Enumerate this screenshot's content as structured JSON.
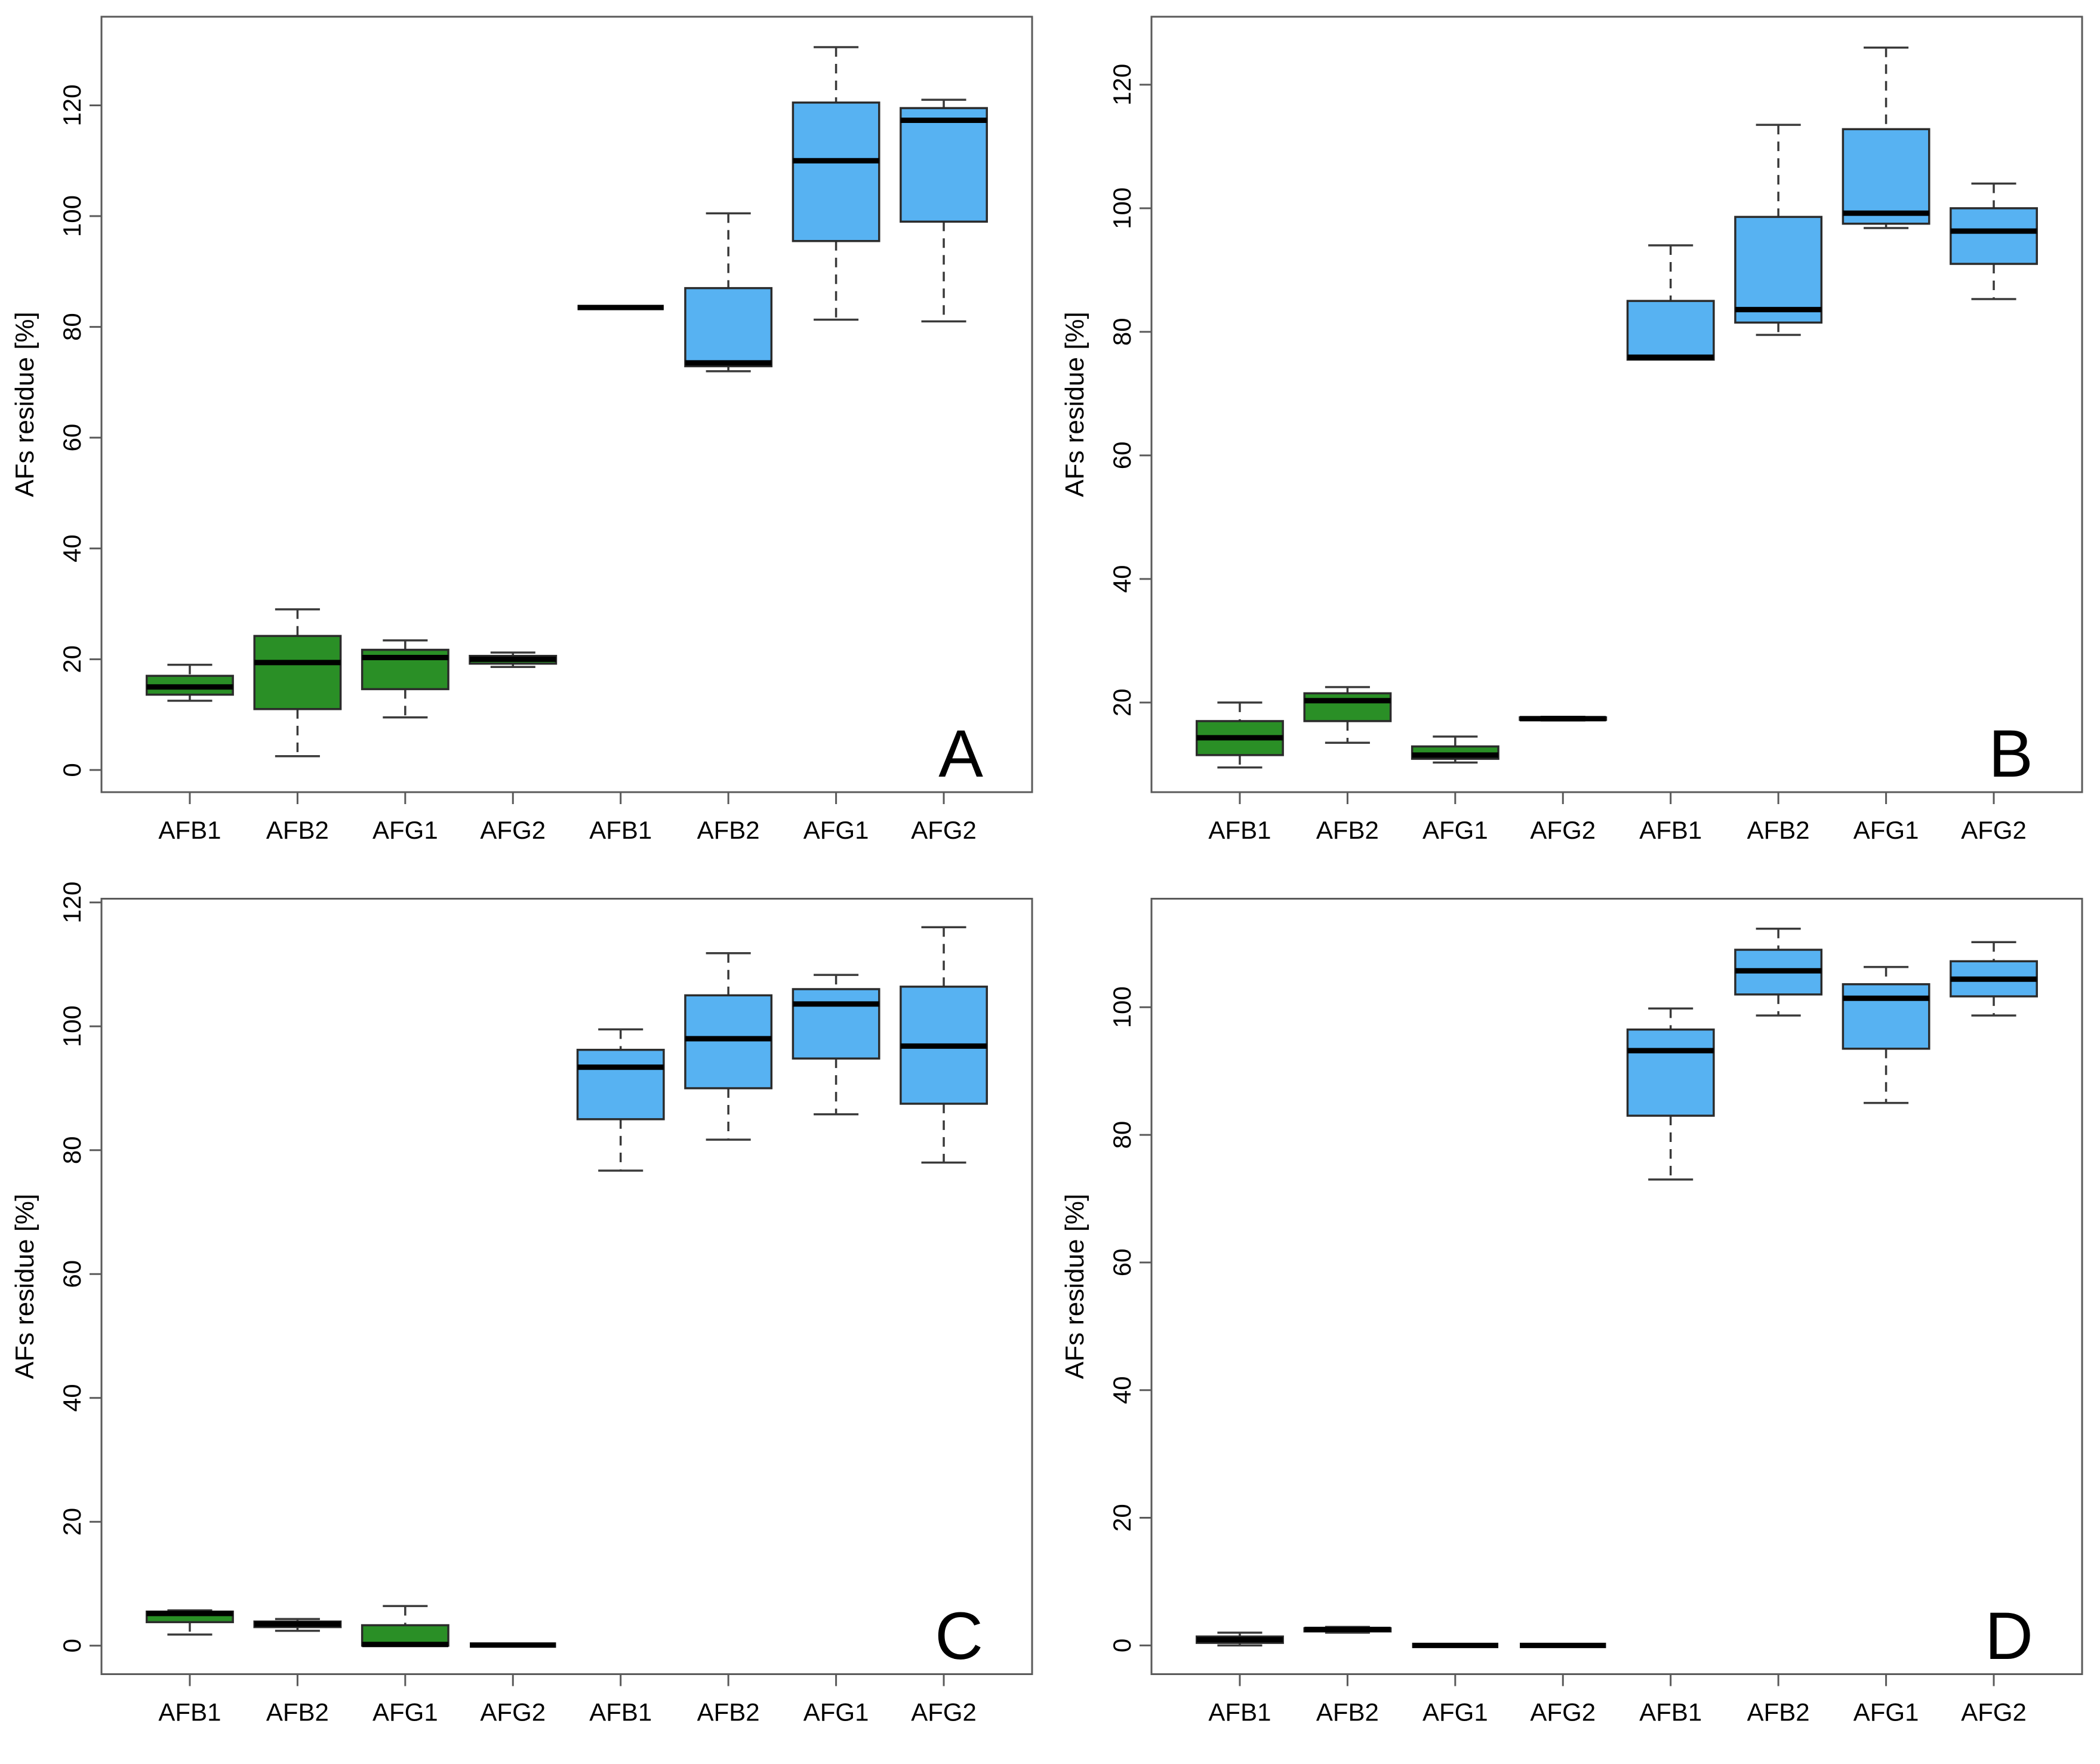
{
  "figure": {
    "background": "#ffffff",
    "kind": "four-panel boxplot figure"
  },
  "colors": {
    "green_fill": "#2a8f26",
    "blue_fill": "#57b2f2",
    "box_border": "#2b2b2b",
    "median": "#000000",
    "whisker": "#3a3a3a",
    "axis": "#5a5a5a",
    "text": "#000000"
  },
  "chart_data": [
    {
      "type": "boxplot",
      "panel_label": "A",
      "ylabel": "AFs residue [%]",
      "yticks": [
        0,
        20,
        40,
        60,
        80,
        100,
        120
      ],
      "ylim": [
        -4,
        136
      ],
      "grid": false,
      "legend": "none",
      "categories": [
        "AFB1",
        "AFB2",
        "AFG1",
        "AFG2",
        "AFB1",
        "AFB2",
        "AFG1",
        "AFG2"
      ],
      "series": [
        {
          "label": "AFB1",
          "group": "green",
          "whislo": 12.5,
          "q1": 13.6,
          "med": 15.0,
          "q3": 17.0,
          "whishi": 19.0
        },
        {
          "label": "AFB2",
          "group": "green",
          "whislo": 2.5,
          "q1": 11.0,
          "med": 19.4,
          "q3": 24.2,
          "whishi": 29.0
        },
        {
          "label": "AFG1",
          "group": "green",
          "whislo": 9.5,
          "q1": 14.6,
          "med": 20.3,
          "q3": 21.7,
          "whishi": 23.4
        },
        {
          "label": "AFG2",
          "group": "green",
          "whislo": 18.6,
          "q1": 19.2,
          "med": 20.0,
          "q3": 20.6,
          "whishi": 21.2
        },
        {
          "label": "AFB1",
          "group": "blue",
          "whislo": 83.5,
          "q1": 83.5,
          "med": 83.5,
          "q3": 83.5,
          "whishi": 83.5
        },
        {
          "label": "AFB2",
          "group": "blue",
          "whislo": 72.0,
          "q1": 72.9,
          "med": 73.5,
          "q3": 87.0,
          "whishi": 100.5
        },
        {
          "label": "AFG1",
          "group": "blue",
          "whislo": 81.3,
          "q1": 95.5,
          "med": 110.0,
          "q3": 120.5,
          "whishi": 130.5
        },
        {
          "label": "AFG2",
          "group": "blue",
          "whislo": 81.0,
          "q1": 99.0,
          "med": 117.3,
          "q3": 119.5,
          "whishi": 121.0
        }
      ]
    },
    {
      "type": "boxplot",
      "panel_label": "B",
      "ylabel": "AFs residue [%]",
      "yticks": [
        20,
        40,
        60,
        80,
        100,
        120
      ],
      "ylim": [
        5.5,
        131
      ],
      "grid": false,
      "legend": "none",
      "categories": [
        "AFB1",
        "AFB2",
        "AFG1",
        "AFG2",
        "AFB1",
        "AFB2",
        "AFG1",
        "AFG2"
      ],
      "series": [
        {
          "label": "AFB1",
          "group": "green",
          "whislo": 9.5,
          "q1": 11.5,
          "med": 14.3,
          "q3": 17.0,
          "whishi": 20.0
        },
        {
          "label": "AFB2",
          "group": "green",
          "whislo": 13.5,
          "q1": 17.0,
          "med": 20.3,
          "q3": 21.5,
          "whishi": 22.5
        },
        {
          "label": "AFG1",
          "group": "green",
          "whislo": 10.3,
          "q1": 10.9,
          "med": 11.5,
          "q3": 12.9,
          "whishi": 14.5
        },
        {
          "label": "AFG2",
          "group": "green",
          "whislo": 17.1,
          "q1": 17.2,
          "med": 17.4,
          "q3": 17.6,
          "whishi": 17.7
        },
        {
          "label": "AFB1",
          "group": "blue",
          "whislo": 75.5,
          "q1": 75.5,
          "med": 75.9,
          "q3": 85.0,
          "whishi": 94.0
        },
        {
          "label": "AFB2",
          "group": "blue",
          "whislo": 79.5,
          "q1": 81.5,
          "med": 83.6,
          "q3": 98.6,
          "whishi": 113.5
        },
        {
          "label": "AFG1",
          "group": "blue",
          "whislo": 96.8,
          "q1": 97.5,
          "med": 99.2,
          "q3": 112.8,
          "whishi": 126.0
        },
        {
          "label": "AFG2",
          "group": "blue",
          "whislo": 85.3,
          "q1": 91.0,
          "med": 96.3,
          "q3": 100.0,
          "whishi": 104.0
        }
      ]
    },
    {
      "type": "boxplot",
      "panel_label": "C",
      "ylabel": "AFs residue [%]",
      "yticks": [
        0,
        20,
        40,
        60,
        80,
        100,
        120
      ],
      "ylim": [
        -4.6,
        120.6
      ],
      "grid": false,
      "legend": "none",
      "categories": [
        "AFB1",
        "AFB2",
        "AFG1",
        "AFG2",
        "AFB1",
        "AFB2",
        "AFG1",
        "AFG2"
      ],
      "series": [
        {
          "label": "AFB1",
          "group": "green",
          "whislo": 1.8,
          "q1": 3.8,
          "med": 5.2,
          "q3": 5.5,
          "whishi": 5.7
        },
        {
          "label": "AFB2",
          "group": "green",
          "whislo": 2.4,
          "q1": 3.0,
          "med": 3.5,
          "q3": 3.9,
          "whishi": 4.3
        },
        {
          "label": "AFG1",
          "group": "green",
          "whislo": 0.0,
          "q1": 0.0,
          "med": 0.2,
          "q3": 3.3,
          "whishi": 6.4
        },
        {
          "label": "AFG2",
          "group": "green",
          "whislo": 0.1,
          "q1": 0.1,
          "med": 0.1,
          "q3": 0.1,
          "whishi": 0.1
        },
        {
          "label": "AFB1",
          "group": "blue",
          "whislo": 76.7,
          "q1": 85.0,
          "med": 93.4,
          "q3": 96.2,
          "whishi": 99.5
        },
        {
          "label": "AFB2",
          "group": "blue",
          "whislo": 81.7,
          "q1": 90.0,
          "med": 98.0,
          "q3": 105.0,
          "whishi": 111.8
        },
        {
          "label": "AFG1",
          "group": "blue",
          "whislo": 85.8,
          "q1": 94.8,
          "med": 103.6,
          "q3": 106.0,
          "whishi": 108.3
        },
        {
          "label": "AFG2",
          "group": "blue",
          "whislo": 78.0,
          "q1": 87.5,
          "med": 96.8,
          "q3": 106.4,
          "whishi": 116.0
        }
      ]
    },
    {
      "type": "boxplot",
      "panel_label": "D",
      "ylabel": "AFs residue [%]",
      "yticks": [
        0,
        20,
        40,
        60,
        80,
        100
      ],
      "ylim": [
        -4.5,
        117
      ],
      "grid": false,
      "legend": "none",
      "categories": [
        "AFB1",
        "AFB2",
        "AFG1",
        "AFG2",
        "AFB1",
        "AFB2",
        "AFG1",
        "AFG2"
      ],
      "series": [
        {
          "label": "AFB1",
          "group": "green",
          "whislo": 0.0,
          "q1": 0.4,
          "med": 0.9,
          "q3": 1.4,
          "whishi": 2.0
        },
        {
          "label": "AFB2",
          "group": "green",
          "whislo": 2.0,
          "q1": 2.2,
          "med": 2.5,
          "q3": 2.7,
          "whishi": 2.9
        },
        {
          "label": "AFG1",
          "group": "green",
          "whislo": 0.0,
          "q1": 0.0,
          "med": 0.0,
          "q3": 0.0,
          "whishi": 0.0
        },
        {
          "label": "AFG2",
          "group": "green",
          "whislo": 0.0,
          "q1": 0.0,
          "med": 0.0,
          "q3": 0.0,
          "whishi": 0.0
        },
        {
          "label": "AFB1",
          "group": "blue",
          "whislo": 73.0,
          "q1": 83.0,
          "med": 93.2,
          "q3": 96.5,
          "whishi": 99.8
        },
        {
          "label": "AFB2",
          "group": "blue",
          "whislo": 98.7,
          "q1": 102.0,
          "med": 105.7,
          "q3": 109.0,
          "whishi": 112.3
        },
        {
          "label": "AFG1",
          "group": "blue",
          "whislo": 85.0,
          "q1": 93.5,
          "med": 101.4,
          "q3": 103.6,
          "whishi": 106.3
        },
        {
          "label": "AFG2",
          "group": "blue",
          "whislo": 98.7,
          "q1": 101.7,
          "med": 104.4,
          "q3": 107.2,
          "whishi": 110.2
        }
      ]
    }
  ]
}
